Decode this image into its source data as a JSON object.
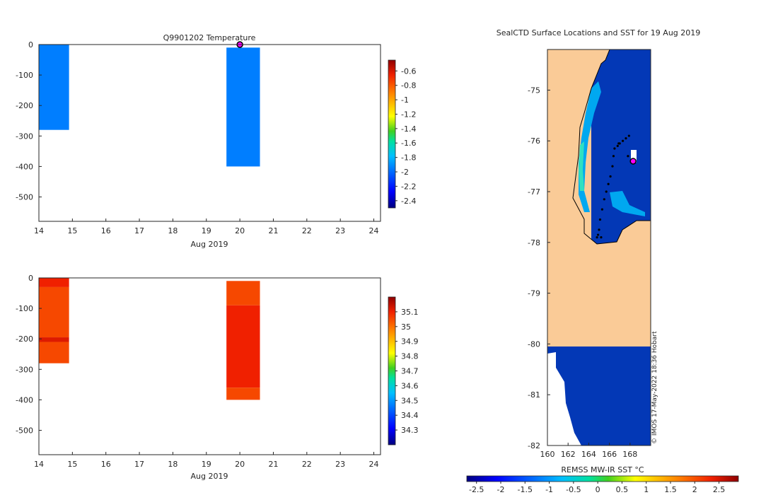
{
  "chart_data": [
    {
      "type": "bar",
      "title": "Q9901202  Temperature",
      "xlabel": "Aug 2019",
      "ylabel": "",
      "xlim": [
        14,
        24.2
      ],
      "ylim": [
        -580,
        0
      ],
      "xticks": [
        "14",
        "15",
        "16",
        "17",
        "18",
        "19",
        "20",
        "21",
        "22",
        "23",
        "24"
      ],
      "yticks": [
        "0",
        "-100",
        "-200",
        "-300",
        "-400",
        "-500"
      ],
      "marker": {
        "x": 20.0,
        "y": 0
      },
      "profiles": [
        {
          "x0": 14.0,
          "x1": 14.9,
          "top": 0,
          "bottom": -280,
          "layers": [
            {
              "top": 0,
              "bottom": -280,
              "value": -1.95
            }
          ]
        },
        {
          "x0": 19.6,
          "x1": 20.6,
          "top": -10,
          "bottom": -400,
          "layers": [
            {
              "top": -10,
              "bottom": -400,
              "value": -1.95
            }
          ]
        }
      ],
      "colorbar": {
        "min": -2.5,
        "max": -0.45,
        "ticks": [
          "-0.6",
          "-0.8",
          "-1",
          "-1.2",
          "-1.4",
          "-1.6",
          "-1.8",
          "-2",
          "-2.2",
          "-2.4"
        ]
      }
    },
    {
      "type": "bar",
      "title": "",
      "xlabel": "Aug 2019",
      "ylabel": "",
      "xlim": [
        14,
        24.2
      ],
      "ylim": [
        -580,
        0
      ],
      "xticks": [
        "14",
        "15",
        "16",
        "17",
        "18",
        "19",
        "20",
        "21",
        "22",
        "23",
        "24"
      ],
      "yticks": [
        "0",
        "-100",
        "-200",
        "-300",
        "-400",
        "-500"
      ],
      "profiles": [
        {
          "x0": 14.0,
          "x1": 14.9,
          "top": 0,
          "bottom": -280,
          "layers": [
            {
              "top": 0,
              "bottom": -30,
              "value": 35.1
            },
            {
              "top": -30,
              "bottom": -195,
              "value": 35.05
            },
            {
              "top": -195,
              "bottom": -210,
              "value": 35.12
            },
            {
              "top": -210,
              "bottom": -280,
              "value": 35.05
            }
          ]
        },
        {
          "x0": 19.6,
          "x1": 20.6,
          "top": -10,
          "bottom": -400,
          "layers": [
            {
              "top": -10,
              "bottom": -90,
              "value": 35.05
            },
            {
              "top": -90,
              "bottom": -360,
              "value": 35.1
            },
            {
              "top": -360,
              "bottom": -400,
              "value": 35.05
            }
          ]
        }
      ],
      "colorbar": {
        "min": 34.2,
        "max": 35.2,
        "ticks": [
          "35.1",
          "35",
          "34.9",
          "34.8",
          "34.7",
          "34.6",
          "34.5",
          "34.4",
          "34.3"
        ]
      }
    },
    {
      "type": "heatmap",
      "title": "SealCTD Surface Locations and SST for 19 Aug 2019",
      "xlim": [
        160,
        170
      ],
      "ylim": [
        -82,
        -74.2
      ],
      "xticks": [
        "160",
        "162",
        "164",
        "166",
        "168"
      ],
      "yticks": [
        "-75",
        "-76",
        "-77",
        "-78",
        "-79",
        "-80",
        "-81",
        "-82"
      ],
      "land_color": "#FACB97",
      "sea_color": "#0338B6",
      "highlight_position": {
        "lon": 168.3,
        "lat": -76.4
      },
      "track_points": [
        [
          167.9,
          -75.9
        ],
        [
          167.6,
          -75.95
        ],
        [
          167.3,
          -76.0
        ],
        [
          167.0,
          -76.05
        ],
        [
          166.8,
          -76.1
        ],
        [
          166.5,
          -76.15
        ],
        [
          166.4,
          -76.3
        ],
        [
          166.3,
          -76.5
        ],
        [
          166.1,
          -76.7
        ],
        [
          165.9,
          -76.85
        ],
        [
          165.7,
          -77.0
        ],
        [
          165.5,
          -77.15
        ],
        [
          165.3,
          -77.35
        ],
        [
          165.1,
          -77.55
        ],
        [
          165.0,
          -77.75
        ],
        [
          164.9,
          -77.85
        ],
        [
          165.2,
          -77.9
        ],
        [
          164.8,
          -77.9
        ],
        [
          166.9,
          -76.05
        ],
        [
          167.8,
          -76.3
        ]
      ],
      "watermark": "© IMOS 17-May-2022 18:36 Hobart",
      "colorbar": {
        "label": "REMSS MW-IR SST °C",
        "min": -2.7,
        "max": 2.9,
        "ticks": [
          "-2.5",
          "-2",
          "-1.5",
          "-1",
          "-0.5",
          "0",
          "0.5",
          "1",
          "1.5",
          "2",
          "2.5"
        ]
      }
    }
  ]
}
